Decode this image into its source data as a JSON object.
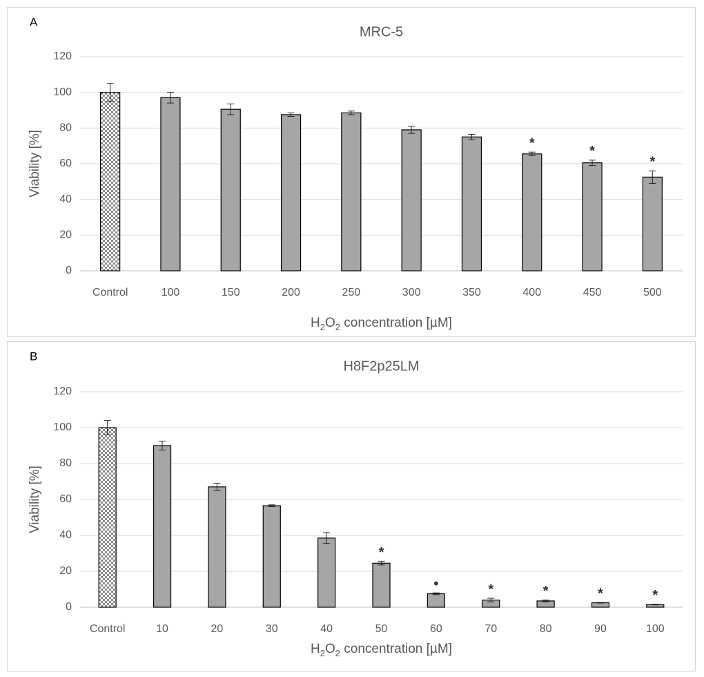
{
  "chart_data": [
    {
      "panel_label": "A",
      "type": "bar",
      "title": "MRC-5",
      "ylabel": "Viability [%]",
      "xlabel": "concentration [µM]",
      "xlabel_chem": {
        "base": "H",
        "sub1": "2",
        "mid": "O",
        "sub2": "2"
      },
      "ylim": [
        0,
        120
      ],
      "yticks": [
        0,
        20,
        40,
        60,
        80,
        100,
        120
      ],
      "grid": true,
      "categories": [
        "Control",
        "100",
        "150",
        "200",
        "250",
        "300",
        "350",
        "400",
        "450",
        "500"
      ],
      "values": [
        100,
        97,
        90.5,
        87.5,
        88.5,
        79,
        75,
        65.5,
        60.5,
        52.5
      ],
      "errors": [
        5,
        3,
        3,
        1,
        1,
        2,
        1.5,
        1,
        1.5,
        3.5
      ],
      "significance": [
        "",
        "",
        "",
        "",
        "",
        "",
        "",
        "*",
        "*",
        "*"
      ],
      "control_pattern": "checkered",
      "bar_color": "#a6a6a6"
    },
    {
      "panel_label": "B",
      "type": "bar",
      "title": "H8F2p25LM",
      "ylabel": "Viability [%]",
      "xlabel": "concentration [µM]",
      "xlabel_chem": {
        "base": "H",
        "sub1": "2",
        "mid": "O",
        "sub2": "2"
      },
      "ylim": [
        0,
        120
      ],
      "yticks": [
        0,
        20,
        40,
        60,
        80,
        100,
        120
      ],
      "grid": true,
      "categories": [
        "Control",
        "10",
        "20",
        "30",
        "40",
        "50",
        "60",
        "70",
        "80",
        "90",
        "100"
      ],
      "values": [
        100,
        90,
        67,
        56.5,
        38.5,
        24.5,
        7.5,
        4,
        3.5,
        2.5,
        1.5
      ],
      "errors": [
        4,
        2.5,
        2,
        0.5,
        3,
        1,
        0.5,
        1,
        0.5,
        0.2,
        0.2
      ],
      "significance": [
        "",
        "",
        "",
        "",
        "",
        "*",
        "•",
        "*",
        "*",
        "*",
        "*"
      ],
      "control_pattern": "checkered",
      "bar_color": "#a6a6a6"
    }
  ]
}
